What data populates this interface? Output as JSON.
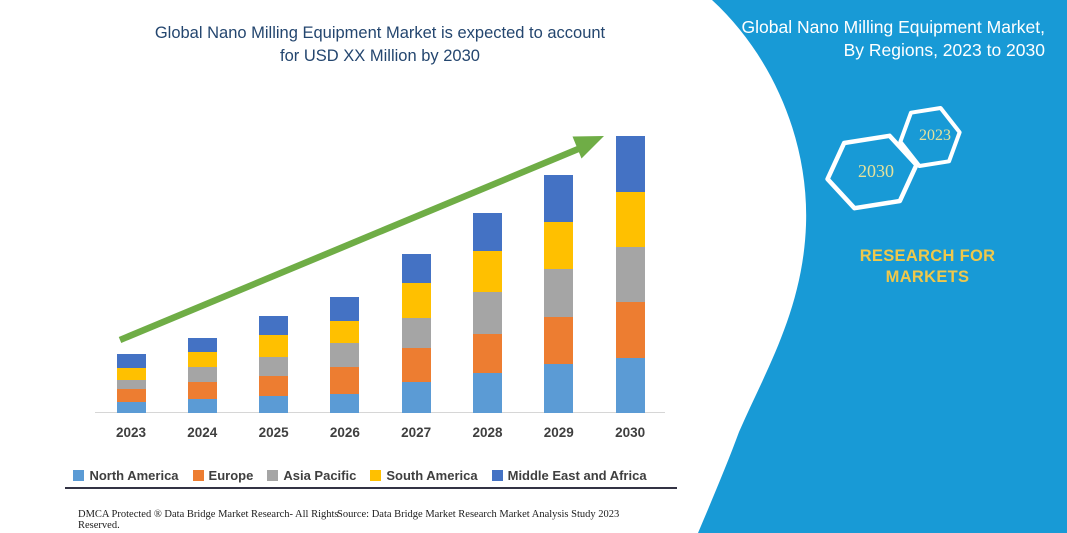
{
  "header": {
    "title_line1": "Global Nano Milling Equipment Market is expected to account",
    "title_line2": "for USD XX Million by 2030"
  },
  "chart_data": {
    "type": "bar",
    "stacked": true,
    "title": "Global Nano Milling Equipment Market is expected to account for USD XX Million by 2030",
    "categories": [
      "2023",
      "2024",
      "2025",
      "2026",
      "2027",
      "2028",
      "2029",
      "2030"
    ],
    "series": [
      {
        "name": "North America",
        "color": "#5B9BD5",
        "values": [
          11,
          14,
          17,
          19,
          31,
          40,
          49,
          55
        ]
      },
      {
        "name": "Europe",
        "color": "#ED7D31",
        "values": [
          13,
          17,
          20,
          27,
          34,
          39,
          47,
          56
        ]
      },
      {
        "name": "Asia Pacific",
        "color": "#A5A5A5",
        "values": [
          9,
          15,
          19,
          24,
          30,
          42,
          48,
          55
        ]
      },
      {
        "name": "South America",
        "color": "#FFC000",
        "values": [
          12,
          15,
          22,
          22,
          35,
          41,
          47,
          55
        ]
      },
      {
        "name": "Middle East and Africa",
        "color": "#4472C4",
        "values": [
          14,
          14,
          19,
          24,
          29,
          38,
          47,
          56
        ]
      }
    ],
    "totals": [
      59,
      75,
      97,
      116,
      159,
      200,
      238,
      277
    ],
    "units": "relative index (y-axis not shown; values stated as USD XX Million)",
    "xlabel": "",
    "ylabel": "",
    "ylim": [
      0,
      290
    ],
    "grid": false,
    "y_axis_shown": false,
    "legend_position": "bottom",
    "trend_arrow": {
      "present": true,
      "direction": "up-right",
      "color": "#6FAD46"
    }
  },
  "side_panel": {
    "background_color": "#189AD6",
    "title_line1": "Global Nano Milling Equipment Market,",
    "title_line2": "By Regions, 2023 to 2030",
    "hexagons": [
      {
        "label": "2030"
      },
      {
        "label": "2023"
      }
    ],
    "hexagon_label_color": "#E6E29B",
    "brand_line1": "RESEARCH FOR",
    "brand_line2": "MARKETS",
    "brand_color": "#EFC84B"
  },
  "footer": {
    "left_text": "DMCA Protected ® Data Bridge Market Research-  All Rights Reserved.",
    "right_text": "Source: Data Bridge Market Research  Market Analysis Study 2023"
  }
}
